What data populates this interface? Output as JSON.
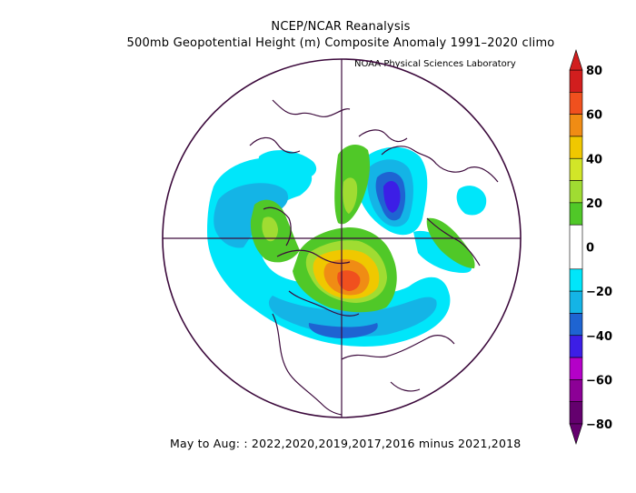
{
  "header": {
    "title": "NCEP/NCAR Reanalysis",
    "subtitle": "500mb Geopotential Height (m) Composite Anomaly 1991–2020 climo",
    "credit": "NOAA Physical Sciences Laboratory"
  },
  "footer": {
    "caption": "May to Aug: : 2022,2020,2019,2017,2016 minus 2021,2018"
  },
  "colorbar": {
    "tick_labels": [
      "80",
      "60",
      "40",
      "20",
      "0",
      "−20",
      "−40",
      "−60",
      "−80"
    ],
    "bands": [
      {
        "range": [
          70,
          80
        ],
        "color": "#d21e1e"
      },
      {
        "range": [
          60,
          70
        ],
        "color": "#f0501e"
      },
      {
        "range": [
          50,
          60
        ],
        "color": "#f08c14"
      },
      {
        "range": [
          40,
          50
        ],
        "color": "#f0c800"
      },
      {
        "range": [
          30,
          40
        ],
        "color": "#d2e628"
      },
      {
        "range": [
          20,
          30
        ],
        "color": "#a0dc32"
      },
      {
        "range": [
          10,
          20
        ],
        "color": "#50c828"
      },
      {
        "range": [
          -10,
          10
        ],
        "color": "#ffffff"
      },
      {
        "range": [
          -20,
          -10
        ],
        "color": "#00e6fa"
      },
      {
        "range": [
          -30,
          -20
        ],
        "color": "#14b4e6"
      },
      {
        "range": [
          -40,
          -30
        ],
        "color": "#1e64d2"
      },
      {
        "range": [
          -50,
          -40
        ],
        "color": "#3c1ee6"
      },
      {
        "range": [
          -60,
          -50
        ],
        "color": "#b400c8"
      },
      {
        "range": [
          -70,
          -60
        ],
        "color": "#8c0096"
      },
      {
        "range": [
          -80,
          -70
        ],
        "color": "#64006e"
      }
    ]
  },
  "map": {
    "projection": "polar stereographic, North Pole",
    "outline_color": "#3c0a3c"
  }
}
